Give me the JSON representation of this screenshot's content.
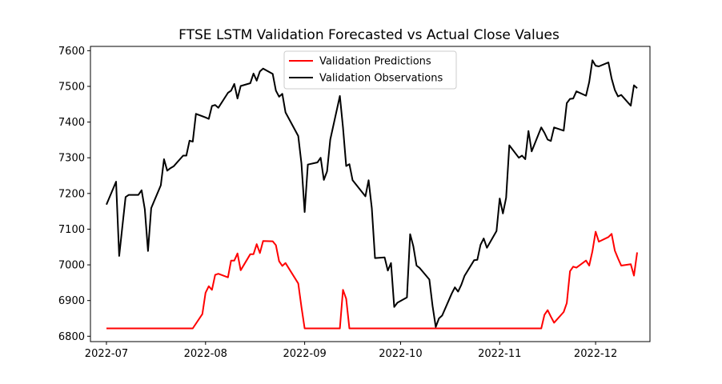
{
  "chart_data": {
    "type": "line",
    "title": "FTSE LSTM Validation Forecasted vs Actual Close Values",
    "xlabel": "",
    "ylabel": "",
    "xlim": [
      "2022-06-26",
      "2022-12-18"
    ],
    "ylim": [
      6785,
      7612
    ],
    "x_tick_labels": [
      "2022-07",
      "2022-08",
      "2022-09",
      "2022-10",
      "2022-11",
      "2022-12"
    ],
    "x_ticks": [
      "2022-07-01",
      "2022-08-01",
      "2022-09-01",
      "2022-10-01",
      "2022-11-01",
      "2022-12-01"
    ],
    "y_ticks": [
      6800,
      6900,
      7000,
      7100,
      7200,
      7300,
      7400,
      7500,
      7600
    ],
    "y_tick_labels": [
      "6800",
      "6900",
      "7000",
      "7100",
      "7200",
      "7300",
      "7400",
      "7500",
      "7600"
    ],
    "legend": {
      "position": "top-center",
      "entries": [
        "Validation Predictions",
        "Validation Observations"
      ]
    },
    "grid": false,
    "series": [
      {
        "name": "Validation Predictions",
        "color": "#ff0000",
        "points": [
          [
            "2022-07-01",
            6822
          ],
          [
            "2022-07-04",
            6822
          ],
          [
            "2022-07-08",
            6822
          ],
          [
            "2022-07-12",
            6822
          ],
          [
            "2022-07-18",
            6822
          ],
          [
            "2022-07-22",
            6822
          ],
          [
            "2022-07-28",
            6822
          ],
          [
            "2022-07-31",
            6862
          ],
          [
            "2022-08-01",
            6922
          ],
          [
            "2022-08-02",
            6940
          ],
          [
            "2022-08-03",
            6930
          ],
          [
            "2022-08-04",
            6972
          ],
          [
            "2022-08-05",
            6975
          ],
          [
            "2022-08-08",
            6965
          ],
          [
            "2022-08-09",
            7012
          ],
          [
            "2022-08-10",
            7012
          ],
          [
            "2022-08-11",
            7032
          ],
          [
            "2022-08-12",
            6985
          ],
          [
            "2022-08-15",
            7030
          ],
          [
            "2022-08-16",
            7030
          ],
          [
            "2022-08-17",
            7058
          ],
          [
            "2022-08-18",
            7033
          ],
          [
            "2022-08-19",
            7067
          ],
          [
            "2022-08-22",
            7066
          ],
          [
            "2022-08-23",
            7055
          ],
          [
            "2022-08-24",
            7010
          ],
          [
            "2022-08-25",
            6997
          ],
          [
            "2022-08-26",
            7005
          ],
          [
            "2022-08-30",
            6948
          ],
          [
            "2022-08-31",
            6882
          ],
          [
            "2022-09-01",
            6822
          ],
          [
            "2022-09-05",
            6822
          ],
          [
            "2022-09-08",
            6822
          ],
          [
            "2022-09-12",
            6822
          ],
          [
            "2022-09-13",
            6930
          ],
          [
            "2022-09-14",
            6905
          ],
          [
            "2022-09-15",
            6822
          ],
          [
            "2022-09-20",
            6822
          ],
          [
            "2022-09-26",
            6822
          ],
          [
            "2022-10-03",
            6822
          ],
          [
            "2022-10-10",
            6822
          ],
          [
            "2022-10-17",
            6822
          ],
          [
            "2022-10-24",
            6822
          ],
          [
            "2022-10-31",
            6822
          ],
          [
            "2022-11-07",
            6822
          ],
          [
            "2022-11-14",
            6822
          ],
          [
            "2022-11-15",
            6860
          ],
          [
            "2022-11-16",
            6873
          ],
          [
            "2022-11-17",
            6855
          ],
          [
            "2022-11-18",
            6838
          ],
          [
            "2022-11-21",
            6868
          ],
          [
            "2022-11-22",
            6893
          ],
          [
            "2022-11-23",
            6982
          ],
          [
            "2022-11-24",
            6995
          ],
          [
            "2022-11-25",
            6992
          ],
          [
            "2022-11-28",
            7012
          ],
          [
            "2022-11-29",
            6998
          ],
          [
            "2022-11-30",
            7038
          ],
          [
            "2022-12-01",
            7093
          ],
          [
            "2022-12-02",
            7065
          ],
          [
            "2022-12-05",
            7078
          ],
          [
            "2022-12-06",
            7087
          ],
          [
            "2022-12-07",
            7040
          ],
          [
            "2022-12-08",
            7018
          ],
          [
            "2022-12-09",
            6998
          ],
          [
            "2022-12-12",
            7002
          ],
          [
            "2022-12-13",
            6970
          ],
          [
            "2022-12-14",
            7035
          ]
        ]
      },
      {
        "name": "Validation Observations",
        "color": "#000000",
        "points": [
          [
            "2022-07-01",
            7169
          ],
          [
            "2022-07-04",
            7233
          ],
          [
            "2022-07-05",
            7025
          ],
          [
            "2022-07-06",
            7108
          ],
          [
            "2022-07-07",
            7190
          ],
          [
            "2022-07-08",
            7196
          ],
          [
            "2022-07-11",
            7196
          ],
          [
            "2022-07-12",
            7209
          ],
          [
            "2022-07-13",
            7156
          ],
          [
            "2022-07-14",
            7039
          ],
          [
            "2022-07-15",
            7159
          ],
          [
            "2022-07-18",
            7223
          ],
          [
            "2022-07-19",
            7296
          ],
          [
            "2022-07-20",
            7264
          ],
          [
            "2022-07-21",
            7271
          ],
          [
            "2022-07-22",
            7276
          ],
          [
            "2022-07-25",
            7306
          ],
          [
            "2022-07-26",
            7306
          ],
          [
            "2022-07-27",
            7348
          ],
          [
            "2022-07-28",
            7345
          ],
          [
            "2022-07-29",
            7423
          ],
          [
            "2022-08-01",
            7413
          ],
          [
            "2022-08-02",
            7409
          ],
          [
            "2022-08-03",
            7445
          ],
          [
            "2022-08-04",
            7448
          ],
          [
            "2022-08-05",
            7440
          ],
          [
            "2022-08-08",
            7482
          ],
          [
            "2022-08-09",
            7488
          ],
          [
            "2022-08-10",
            7507
          ],
          [
            "2022-08-11",
            7466
          ],
          [
            "2022-08-12",
            7501
          ],
          [
            "2022-08-15",
            7509
          ],
          [
            "2022-08-16",
            7536
          ],
          [
            "2022-08-17",
            7516
          ],
          [
            "2022-08-18",
            7542
          ],
          [
            "2022-08-19",
            7550
          ],
          [
            "2022-08-22",
            7535
          ],
          [
            "2022-08-23",
            7488
          ],
          [
            "2022-08-24",
            7471
          ],
          [
            "2022-08-25",
            7479
          ],
          [
            "2022-08-26",
            7427
          ],
          [
            "2022-08-30",
            7361
          ],
          [
            "2022-08-31",
            7284
          ],
          [
            "2022-09-01",
            7148
          ],
          [
            "2022-09-02",
            7281
          ],
          [
            "2022-09-05",
            7287
          ],
          [
            "2022-09-06",
            7300
          ],
          [
            "2022-09-07",
            7238
          ],
          [
            "2022-09-08",
            7262
          ],
          [
            "2022-09-09",
            7351
          ],
          [
            "2022-09-12",
            7473
          ],
          [
            "2022-09-13",
            7385
          ],
          [
            "2022-09-14",
            7277
          ],
          [
            "2022-09-15",
            7282
          ],
          [
            "2022-09-16",
            7237
          ],
          [
            "2022-09-20",
            7192
          ],
          [
            "2022-09-21",
            7237
          ],
          [
            "2022-09-22",
            7159
          ],
          [
            "2022-09-23",
            7019
          ],
          [
            "2022-09-26",
            7021
          ],
          [
            "2022-09-27",
            6984
          ],
          [
            "2022-09-28",
            7005
          ],
          [
            "2022-09-29",
            6882
          ],
          [
            "2022-09-30",
            6894
          ],
          [
            "2022-10-03",
            6909
          ],
          [
            "2022-10-04",
            7086
          ],
          [
            "2022-10-05",
            7052
          ],
          [
            "2022-10-06",
            6998
          ],
          [
            "2022-10-07",
            6991
          ],
          [
            "2022-10-10",
            6959
          ],
          [
            "2022-10-11",
            6885
          ],
          [
            "2022-10-12",
            6826
          ],
          [
            "2022-10-13",
            6850
          ],
          [
            "2022-10-14",
            6858
          ],
          [
            "2022-10-17",
            6920
          ],
          [
            "2022-10-18",
            6937
          ],
          [
            "2022-10-19",
            6925
          ],
          [
            "2022-10-20",
            6944
          ],
          [
            "2022-10-21",
            6969
          ],
          [
            "2022-10-24",
            7013
          ],
          [
            "2022-10-25",
            7014
          ],
          [
            "2022-10-26",
            7056
          ],
          [
            "2022-10-27",
            7074
          ],
          [
            "2022-10-28",
            7048
          ],
          [
            "2022-10-31",
            7095
          ],
          [
            "2022-11-01",
            7186
          ],
          [
            "2022-11-02",
            7144
          ],
          [
            "2022-11-03",
            7188
          ],
          [
            "2022-11-04",
            7335
          ],
          [
            "2022-11-07",
            7300
          ],
          [
            "2022-11-08",
            7306
          ],
          [
            "2022-11-09",
            7296
          ],
          [
            "2022-11-10",
            7375
          ],
          [
            "2022-11-11",
            7318
          ],
          [
            "2022-11-14",
            7385
          ],
          [
            "2022-11-15",
            7370
          ],
          [
            "2022-11-16",
            7351
          ],
          [
            "2022-11-17",
            7347
          ],
          [
            "2022-11-18",
            7385
          ],
          [
            "2022-11-21",
            7376
          ],
          [
            "2022-11-22",
            7453
          ],
          [
            "2022-11-23",
            7465
          ],
          [
            "2022-11-24",
            7466
          ],
          [
            "2022-11-25",
            7486
          ],
          [
            "2022-11-28",
            7474
          ],
          [
            "2022-11-29",
            7512
          ],
          [
            "2022-11-30",
            7573
          ],
          [
            "2022-12-01",
            7558
          ],
          [
            "2022-12-02",
            7556
          ],
          [
            "2022-12-05",
            7567
          ],
          [
            "2022-12-06",
            7522
          ],
          [
            "2022-12-07",
            7490
          ],
          [
            "2022-12-08",
            7472
          ],
          [
            "2022-12-09",
            7476
          ],
          [
            "2022-12-12",
            7446
          ],
          [
            "2022-12-13",
            7503
          ],
          [
            "2022-12-14",
            7495
          ]
        ]
      }
    ]
  }
}
